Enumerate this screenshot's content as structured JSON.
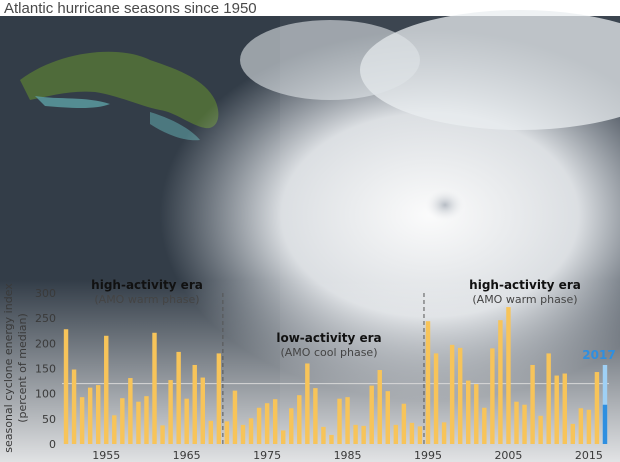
{
  "title": "Atlantic hurricane seasons since 1950",
  "colors": {
    "bar": "#f7c45a",
    "highlight_light": "#9fd0f5",
    "highlight_dark": "#2f8fe0",
    "divider": "#555555",
    "median_line": "#d8d8d8"
  },
  "chart_data": {
    "type": "bar",
    "ylabel": "seasonal cyclone energy index",
    "ylabel_sub": "(percent of median)",
    "ylim": [
      0,
      300
    ],
    "yticks": [
      0,
      50,
      100,
      150,
      200,
      250,
      300
    ],
    "xticks": [
      1955,
      1965,
      1975,
      1985,
      1995,
      2005,
      2015
    ],
    "highlight_label": "2017",
    "highlight_values": {
      "total": 157,
      "dark_portion": 78
    },
    "years": [
      1950,
      1951,
      1952,
      1953,
      1954,
      1955,
      1956,
      1957,
      1958,
      1959,
      1960,
      1961,
      1962,
      1963,
      1964,
      1965,
      1966,
      1967,
      1968,
      1969,
      1970,
      1971,
      1972,
      1973,
      1974,
      1975,
      1976,
      1977,
      1978,
      1979,
      1980,
      1981,
      1982,
      1983,
      1984,
      1985,
      1986,
      1987,
      1988,
      1989,
      1990,
      1991,
      1992,
      1993,
      1994,
      1995,
      1996,
      1997,
      1998,
      1999,
      2000,
      2001,
      2002,
      2003,
      2004,
      2005,
      2006,
      2007,
      2008,
      2009,
      2010,
      2011,
      2012,
      2013,
      2014,
      2015,
      2016,
      2017
    ],
    "values": [
      228,
      148,
      93,
      112,
      117,
      215,
      57,
      91,
      131,
      84,
      95,
      221,
      37,
      127,
      183,
      90,
      157,
      132,
      46,
      180,
      45,
      106,
      38,
      51,
      72,
      81,
      89,
      27,
      71,
      97,
      160,
      111,
      34,
      18,
      90,
      93,
      38,
      36,
      116,
      147,
      105,
      38,
      80,
      42,
      35,
      244,
      180,
      43,
      197,
      191,
      126,
      119,
      72,
      190,
      246,
      272,
      84,
      78,
      157,
      56,
      180,
      136,
      140,
      40,
      71,
      68,
      143,
      157
    ],
    "eras": [
      {
        "title": "high-activity era",
        "subtitle": "(AMO warm phase)"
      },
      {
        "title": "low-activity era",
        "subtitle": "(AMO cool phase)"
      },
      {
        "title": "high-activity era",
        "subtitle": "(AMO warm phase)"
      }
    ],
    "dividers": [
      1969.5,
      1994.5
    ],
    "median_line": 120
  }
}
